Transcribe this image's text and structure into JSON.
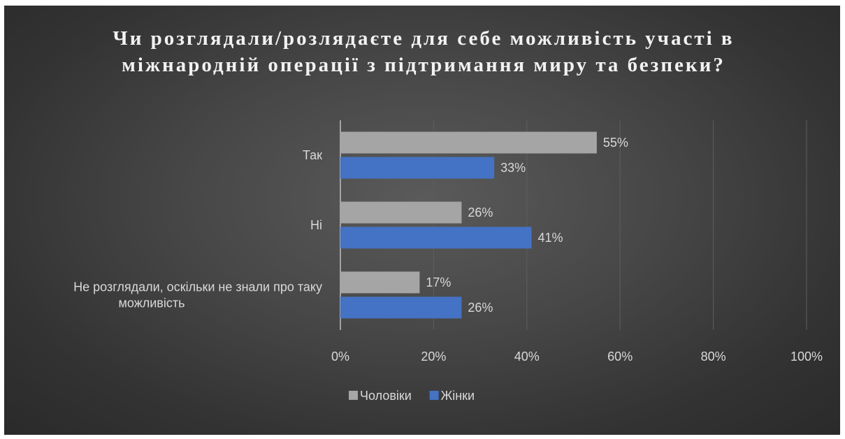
{
  "chart_data": {
    "type": "bar",
    "orientation": "horizontal",
    "title": "Чи розглядали/розлядаєте для себе можливість участі в міжнародній операції з підтримання миру та безпеки?",
    "categories": [
      "Так",
      "Ні",
      "Не розглядали, оскільки не знали про таку можливість"
    ],
    "series": [
      {
        "name": "Чоловіки",
        "values": [
          55,
          26,
          17
        ],
        "labels": [
          "55%",
          "26%",
          "17%"
        ],
        "color": "#a5a5a5"
      },
      {
        "name": "Жінки",
        "values": [
          33,
          41,
          26
        ],
        "labels": [
          "33%",
          "41%",
          "26%"
        ],
        "color": "#4472c4"
      }
    ],
    "xlim": [
      0,
      100
    ],
    "x_ticks": [
      "0%",
      "20%",
      "40%",
      "60%",
      "80%",
      "100%"
    ],
    "grid": true,
    "legend_position": "bottom",
    "background": "#404040"
  }
}
